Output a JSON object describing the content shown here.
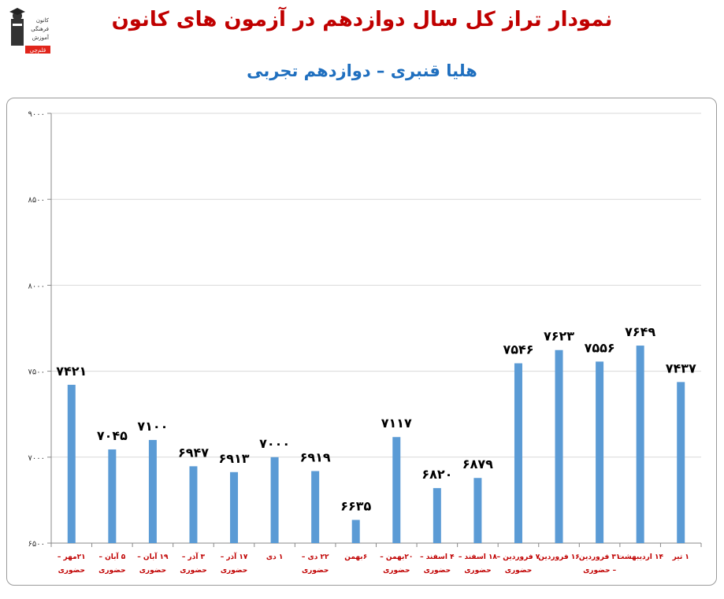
{
  "header": {
    "title": "نمودار تراز کل سال دوازدهم در آزمون های کانون",
    "subtitle": "هلیا قنبری – دوازدهم تجربی"
  },
  "logo": {
    "icon": "kanoon-graduate-logo-icon",
    "text_lines": [
      "کانون",
      "فرهنگی",
      "آموزش"
    ],
    "badge": "قلم‌چی"
  },
  "colors": {
    "title": "#c00000",
    "subtitle": "#1f6fbf",
    "bar": "#5b9bd5",
    "category_label": "#c00000",
    "value_label": "#000000",
    "grid": "#d9d9d9"
  },
  "chart_data": {
    "type": "bar",
    "title": "نمودار تراز کل سال دوازدهم در آزمون های کانون",
    "subtitle": "هلیا قنبری – دوازدهم تجربی",
    "xlabel": "",
    "ylabel": "",
    "ylim": [
      6500,
      9000
    ],
    "yticks": [
      6500,
      7000,
      7500,
      8000,
      8500,
      9000
    ],
    "ytick_labels": [
      "۶۵۰۰",
      "۷۰۰۰",
      "۷۵۰۰",
      "۸۰۰۰",
      "۸۵۰۰",
      "۹۰۰۰"
    ],
    "grid": true,
    "legend": "none",
    "categories": [
      [
        "۲۱مهر –",
        "حضوری"
      ],
      [
        "۵ آبان –",
        "حضوری"
      ],
      [
        "۱۹ آبان –",
        "حضوری"
      ],
      [
        "۳ آذر –",
        "حضوری"
      ],
      [
        "۱۷ آذر –",
        "حضوری"
      ],
      [
        "۱ دی"
      ],
      [
        "۲۲ دی –",
        "حضوری"
      ],
      [
        "۶بهمن"
      ],
      [
        "۲۰بهمن –",
        "حضوری"
      ],
      [
        "۴ اسفند –",
        "حضوری"
      ],
      [
        "۱۸ اسفند –",
        "حضوری"
      ],
      [
        "۷ فروردین –",
        "حضوری"
      ],
      [
        "۱۶ فروردین"
      ],
      [
        "۳۱ فروردین",
        "– حضوری"
      ],
      [
        "۱۴ اردیبهشت"
      ],
      [
        "۱ تیر"
      ]
    ],
    "values": [
      7421,
      7045,
      7100,
      6947,
      6913,
      7000,
      6919,
      6635,
      7117,
      6820,
      6879,
      7546,
      7623,
      7556,
      7649,
      7437
    ],
    "value_labels": [
      "۷۴۲۱",
      "۷۰۴۵",
      "۷۱۰۰",
      "۶۹۴۷",
      "۶۹۱۳",
      "۷۰۰۰",
      "۶۹۱۹",
      "۶۶۳۵",
      "۷۱۱۷",
      "۶۸۲۰",
      "۶۸۷۹",
      "۷۵۴۶",
      "۷۶۲۳",
      "۷۵۵۶",
      "۷۶۴۹",
      "۷۴۳۷"
    ]
  }
}
